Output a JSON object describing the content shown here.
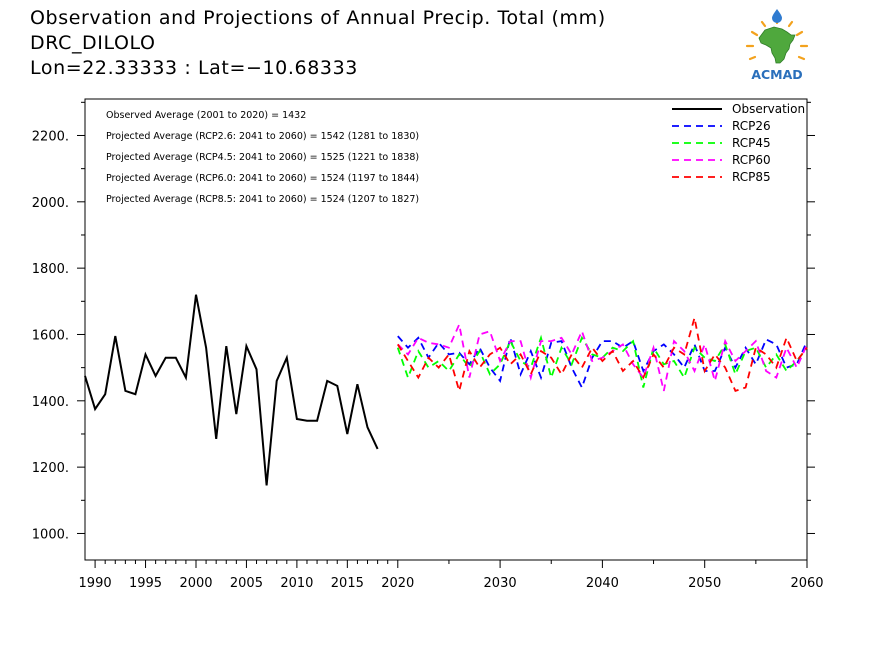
{
  "header": {
    "line1": "Observation and Projections of Annual Precip. Total (mm)",
    "line2": "DRC_DILOLO",
    "line3": "Lon=22.33333 : Lat=−10.68333"
  },
  "logo": {
    "text": "ACMAD",
    "icon": "acmad-africa-sun-logo"
  },
  "annotations": [
    "Observed Average (2001 to 2020) = 1432",
    "Projected Average (RCP2.6: 2041 to 2060) = 1542 (1281 to 1830)",
    "Projected Average (RCP4.5: 2041 to 2060) = 1525 (1221 to 1838)",
    "Projected Average (RCP6.0: 2041 to 2060) = 1524 (1197 to 1844)",
    "Projected Average (RCP8.5: 2041 to 2060) = 1524 (1207 to 1827)"
  ],
  "chart_data": {
    "type": "line",
    "xlim": [
      1989,
      2060
    ],
    "ylim": [
      920,
      2310
    ],
    "x_breaks": [
      {
        "at": 2020,
        "scale_before": 10.09,
        "scale_after": 9.07
      }
    ],
    "x_ticks": [
      {
        "value": 1990,
        "label": "1990"
      },
      {
        "value": 1995,
        "label": "1995"
      },
      {
        "value": 2000,
        "label": "2000"
      },
      {
        "value": 2005,
        "label": "2005"
      },
      {
        "value": 2010,
        "label": "2010"
      },
      {
        "value": 2015,
        "label": "2015"
      },
      {
        "value": 2020,
        "label": "2020"
      },
      {
        "value": 2030,
        "label": "2030"
      },
      {
        "value": 2040,
        "label": "2040"
      },
      {
        "value": 2050,
        "label": "2050"
      },
      {
        "value": 2060,
        "label": "2060"
      }
    ],
    "y_ticks": [
      {
        "value": 1000,
        "label": "1000."
      },
      {
        "value": 1200,
        "label": "1200."
      },
      {
        "value": 1400,
        "label": "1400."
      },
      {
        "value": 1600,
        "label": "1600."
      },
      {
        "value": 1800,
        "label": "1800."
      },
      {
        "value": 2000,
        "label": "2000."
      },
      {
        "value": 2200,
        "label": "2200."
      }
    ],
    "legend_position": "top-right",
    "series": [
      {
        "name": "Observation",
        "color": "#000000",
        "dash": "solid",
        "x": [
          1989,
          1990,
          1991,
          1992,
          1993,
          1994,
          1995,
          1996,
          1997,
          1998,
          1999,
          2000,
          2001,
          2002,
          2003,
          2004,
          2005,
          2006,
          2007,
          2008,
          2009,
          2010,
          2011,
          2012,
          2013,
          2014,
          2015,
          2016,
          2017,
          2018,
          2019,
          2020
        ],
        "y": [
          1475,
          1375,
          1420,
          1595,
          1430,
          1420,
          1540,
          1475,
          1530,
          1530,
          1470,
          1720,
          1560,
          1285,
          1565,
          1360,
          1565,
          1495,
          1145,
          1460,
          1530,
          1345,
          1340,
          1340,
          1460,
          1445,
          1300,
          1450,
          1320,
          1255,
          null,
          null
        ]
      },
      {
        "name": "RCP26",
        "color": "#0000ff",
        "dash": "dashed",
        "x": [
          2020,
          2021,
          2022,
          2023,
          2024,
          2025,
          2026,
          2027,
          2028,
          2029,
          2030,
          2031,
          2032,
          2033,
          2034,
          2035,
          2036,
          2037,
          2038,
          2039,
          2040,
          2041,
          2042,
          2043,
          2044,
          2045,
          2046,
          2047,
          2048,
          2049,
          2050,
          2051,
          2052,
          2053,
          2054,
          2055,
          2056,
          2057,
          2058,
          2059,
          2060
        ],
        "y": [
          1595,
          1560,
          1590,
          1530,
          1575,
          1540,
          1545,
          1510,
          1560,
          1500,
          1460,
          1590,
          1480,
          1550,
          1470,
          1575,
          1580,
          1500,
          1440,
          1530,
          1580,
          1580,
          1560,
          1580,
          1490,
          1550,
          1570,
          1540,
          1500,
          1570,
          1490,
          1490,
          1560,
          1500,
          1560,
          1510,
          1585,
          1570,
          1500,
          1510,
          1580
        ]
      },
      {
        "name": "RCP45",
        "color": "#00ff00",
        "dash": "dashed",
        "x": [
          2020,
          2021,
          2022,
          2023,
          2024,
          2025,
          2026,
          2027,
          2028,
          2029,
          2030,
          2031,
          2032,
          2033,
          2034,
          2035,
          2036,
          2037,
          2038,
          2039,
          2040,
          2041,
          2042,
          2043,
          2044,
          2045,
          2046,
          2047,
          2048,
          2049,
          2050,
          2051,
          2052,
          2053,
          2054,
          2055,
          2056,
          2057,
          2058,
          2059,
          2060
        ],
        "y": [
          1560,
          1470,
          1550,
          1500,
          1520,
          1490,
          1540,
          1500,
          1550,
          1480,
          1510,
          1580,
          1520,
          1500,
          1590,
          1470,
          1560,
          1510,
          1590,
          1540,
          1530,
          1560,
          1550,
          1580,
          1440,
          1560,
          1510,
          1520,
          1470,
          1560,
          1530,
          1520,
          1570,
          1480,
          1550,
          1560,
          1500,
          1540,
          1490,
          1520,
          1560
        ]
      },
      {
        "name": "RCP60",
        "color": "#ff00ff",
        "dash": "dashed",
        "x": [
          2020,
          2021,
          2022,
          2023,
          2024,
          2025,
          2026,
          2027,
          2028,
          2029,
          2030,
          2031,
          2032,
          2033,
          2034,
          2035,
          2036,
          2037,
          2038,
          2039,
          2040,
          2041,
          2042,
          2043,
          2044,
          2045,
          2046,
          2047,
          2048,
          2049,
          2050,
          2051,
          2052,
          2053,
          2054,
          2055,
          2056,
          2057,
          2058,
          2059,
          2060
        ],
        "y": [
          1570,
          1540,
          1590,
          1575,
          1570,
          1560,
          1630,
          1470,
          1600,
          1610,
          1520,
          1580,
          1580,
          1470,
          1580,
          1580,
          1590,
          1540,
          1610,
          1520,
          1530,
          1550,
          1570,
          1510,
          1470,
          1560,
          1430,
          1580,
          1550,
          1490,
          1570,
          1460,
          1580,
          1520,
          1550,
          1580,
          1490,
          1470,
          1560,
          1500,
          1570
        ]
      },
      {
        "name": "RCP85",
        "color": "#ff0000",
        "dash": "dashed",
        "x": [
          2020,
          2021,
          2022,
          2023,
          2024,
          2025,
          2026,
          2027,
          2028,
          2029,
          2030,
          2031,
          2032,
          2033,
          2034,
          2035,
          2036,
          2037,
          2038,
          2039,
          2040,
          2041,
          2042,
          2043,
          2044,
          2045,
          2046,
          2047,
          2048,
          2049,
          2050,
          2051,
          2052,
          2053,
          2054,
          2055,
          2056,
          2057,
          2058,
          2059,
          2060
        ],
        "y": [
          1570,
          1520,
          1470,
          1530,
          1500,
          1540,
          1430,
          1550,
          1500,
          1540,
          1560,
          1510,
          1540,
          1480,
          1550,
          1530,
          1480,
          1540,
          1500,
          1560,
          1520,
          1550,
          1490,
          1520,
          1470,
          1540,
          1500,
          1560,
          1540,
          1650,
          1490,
          1540,
          1500,
          1430,
          1440,
          1560,
          1540,
          1500,
          1590,
          1520,
          1560
        ]
      }
    ]
  }
}
